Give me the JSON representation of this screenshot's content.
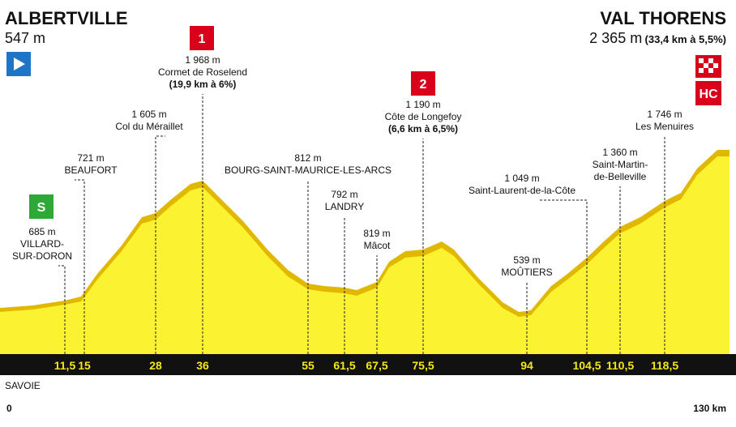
{
  "start": {
    "name": "ALBERTVILLE",
    "elevation": "547 m"
  },
  "finish": {
    "name": "VAL THORENS",
    "elevation": "2 365 m",
    "climb": "(33,4 km à 5,5%)",
    "badge": "HC"
  },
  "points": [
    {
      "km": "11,5",
      "lines": [
        "685 m",
        "VILLARD-",
        "SUR-DORON"
      ],
      "badge": "S"
    },
    {
      "km": "15",
      "lines": [
        "721 m",
        "BEAUFORT"
      ]
    },
    {
      "km": "28",
      "lines": [
        "1 605 m",
        "Col du Méraillet"
      ]
    },
    {
      "km": "36",
      "lines": [
        "1 968 m",
        "Cormet de Roselend",
        "(19,9 km à 6%)"
      ],
      "badge": "1"
    },
    {
      "km": "55",
      "lines": [
        "812 m",
        "BOURG-SAINT-MAURICE-LES-ARCS"
      ]
    },
    {
      "km": "61,5",
      "lines": [
        "792 m",
        "LANDRY"
      ]
    },
    {
      "km": "67,5",
      "lines": [
        "819 m",
        "Mâcot"
      ]
    },
    {
      "km": "75,5",
      "lines": [
        "1 190 m",
        "Côte de Longefoy",
        "(6,6 km à 6,5%)"
      ],
      "badge": "2"
    },
    {
      "km": "94",
      "lines": [
        "539 m",
        "MOÛTIERS"
      ]
    },
    {
      "km": "104,5",
      "lines": [
        "1 049 m",
        "Saint-Laurent-de-la-Côte"
      ]
    },
    {
      "km": "110,5",
      "lines": [
        "1 360 m",
        "Saint-Martin-",
        "de-Belleville"
      ]
    },
    {
      "km": "118,5",
      "lines": [
        "1 746 m",
        "Les Menuires"
      ]
    }
  ],
  "region": "SAVOIE",
  "distance_start": "0",
  "distance_end": "130 km"
}
